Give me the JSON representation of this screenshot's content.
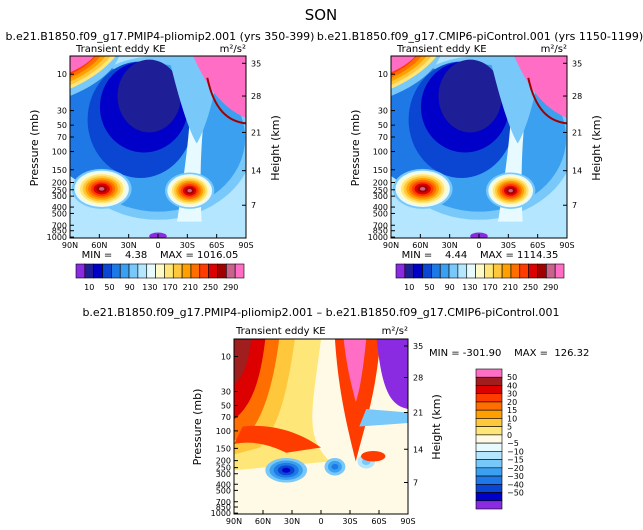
{
  "page_title": "SON",
  "chart_data": [
    {
      "type": "heatmap",
      "title": "b.e21.B1850.f09_g17.PMIP4-pliomip2.001 (yrs 350-399)",
      "subtitle_left": "Transient eddy KE",
      "units": "m²/s²",
      "ylabel": "Pressure (mb)",
      "ylabel_right": "Height (km)",
      "pressure_ticks": [
        "10",
        "30",
        "50",
        "70",
        "100",
        "150",
        "200",
        "250",
        "300",
        "400",
        "500",
        "700",
        "850",
        "1000"
      ],
      "height_ticks": [
        "35",
        "28",
        "21",
        "14",
        "7"
      ],
      "lat_ticks": [
        "90N",
        "60N",
        "30N",
        "0",
        "30S",
        "60S",
        "90S"
      ],
      "stats": "MIN =    4.38    MAX = 1016.05",
      "colorbar_labels": [
        "10",
        "50",
        "90",
        "130",
        "170",
        "210",
        "250",
        "290"
      ],
      "colors": [
        "#8a2be2",
        "#1e1e96",
        "#0000c8",
        "#0a46d2",
        "#1e78e6",
        "#3ca0f0",
        "#78c8fa",
        "#b4e6ff",
        "#e6faff",
        "#fffac8",
        "#ffe678",
        "#ffc83c",
        "#ffa000",
        "#ff6e00",
        "#ff3c00",
        "#dc0000",
        "#a00000",
        "#c8648c",
        "#ff6ec4"
      ]
    },
    {
      "type": "heatmap",
      "title": "b.e21.B1850.f09_g17.CMIP6-piControl.001 (yrs 1150-1199)",
      "subtitle_left": "Transient eddy KE",
      "units": "m²/s²",
      "ylabel": "Pressure (mb)",
      "ylabel_right": "Height (km)",
      "pressure_ticks": [
        "10",
        "30",
        "50",
        "70",
        "100",
        "150",
        "200",
        "250",
        "300",
        "400",
        "500",
        "700",
        "850",
        "1000"
      ],
      "height_ticks": [
        "35",
        "28",
        "21",
        "14",
        "7"
      ],
      "lat_ticks": [
        "90N",
        "60N",
        "30N",
        "0",
        "30S",
        "60S",
        "90S"
      ],
      "stats": "MIN =    4.44    MAX = 1114.35",
      "colorbar_labels": [
        "10",
        "50",
        "90",
        "130",
        "170",
        "210",
        "250",
        "290"
      ]
    },
    {
      "type": "heatmap",
      "title": "b.e21.B1850.f09_g17.PMIP4-pliomip2.001 – b.e21.B1850.f09_g17.CMIP6-piControl.001",
      "subtitle_left": "Transient eddy KE",
      "units": "m²/s²",
      "ylabel": "Pressure (mb)",
      "ylabel_right": "Height (km)",
      "pressure_ticks": [
        "10",
        "30",
        "50",
        "70",
        "100",
        "150",
        "200",
        "250",
        "300",
        "400",
        "500",
        "700",
        "850",
        "1000"
      ],
      "height_ticks": [
        "35",
        "28",
        "21",
        "14",
        "7"
      ],
      "lat_ticks": [
        "90N",
        "60N",
        "30N",
        "0",
        "30S",
        "60S",
        "90S"
      ],
      "stats": "MIN = -301.90    MAX =  126.32",
      "colorbar_labels": [
        "50",
        "40",
        "30",
        "20",
        "15",
        "10",
        "5",
        "0",
        "−5",
        "−10",
        "−15",
        "−20",
        "−30",
        "−40",
        "−50"
      ],
      "colors": [
        "#ff6ec4",
        "#a01e1e",
        "#dc0000",
        "#ff3c00",
        "#ff6e00",
        "#ffa000",
        "#ffc83c",
        "#ffe678",
        "#fffae6",
        "#e6faff",
        "#b4e6ff",
        "#78c8fa",
        "#3ca0f0",
        "#1e78e6",
        "#0a46d2",
        "#0000c8",
        "#8a2be2"
      ]
    }
  ]
}
